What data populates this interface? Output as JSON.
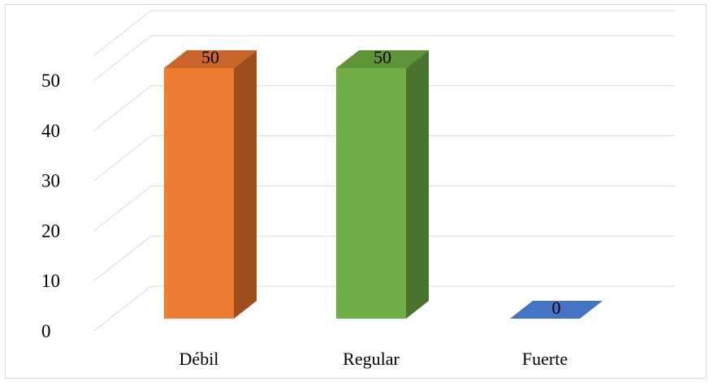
{
  "chart_data": {
    "type": "bar",
    "style": "3d-column",
    "categories": [
      "Débil",
      "Regular",
      "Fuerte"
    ],
    "values": [
      50,
      50,
      0
    ],
    "data_labels": [
      "50",
      "50",
      "0"
    ],
    "yticks": [
      "0",
      "10",
      "20",
      "30",
      "40",
      "50"
    ],
    "ylim": [
      0,
      55
    ],
    "grid": true,
    "legend": "none",
    "colors": {
      "bars": [
        "#ED7D31",
        "#70AD47",
        "#4472C4"
      ],
      "bar_sides": [
        "#9C4F1D",
        "#4A7330",
        "#2F5597"
      ],
      "bar_tops": [
        "#C9652A",
        "#5E9438",
        "#3A66A8"
      ],
      "gridline": "#d9d9d9"
    }
  }
}
